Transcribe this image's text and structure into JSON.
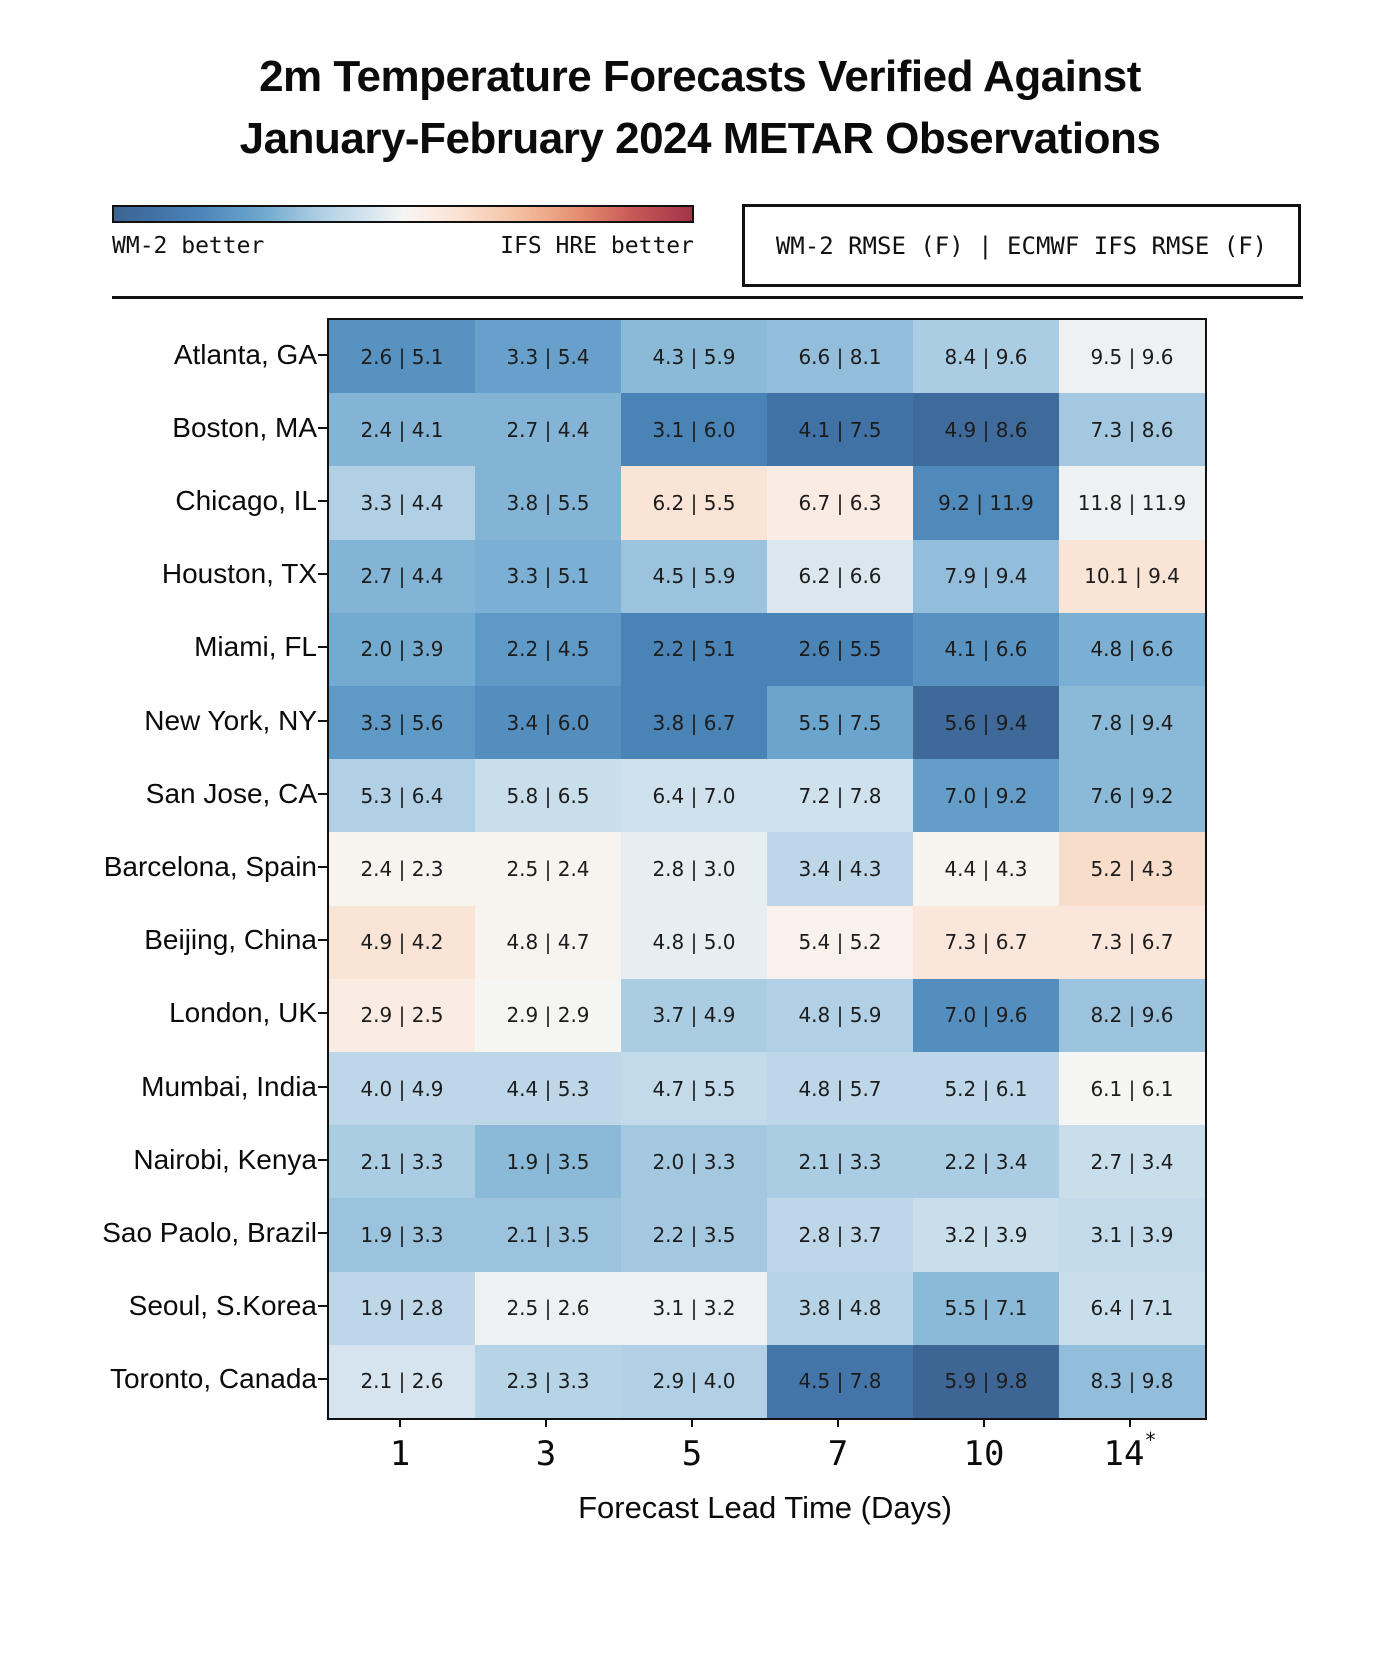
{
  "title": {
    "line1": "2m Temperature Forecasts Verified Against",
    "line2": "January-February 2024 METAR Observations"
  },
  "colorbar": {
    "left_label": "WM-2 better",
    "right_label": "IFS HRE better"
  },
  "legend": {
    "text": "WM-2 RMSE (F) | ECMWF IFS RMSE (F)"
  },
  "chart_data": {
    "type": "heatmap",
    "title": "2m Temperature Forecasts Verified Against January-February 2024 METAR Observations",
    "xlabel": "Forecast Lead Time (Days)",
    "x_categories": [
      "1",
      "3",
      "5",
      "7",
      "10",
      "14"
    ],
    "x_last_tick_marker": "*",
    "cell_value_format": "WM-2 RMSE (F) | ECMWF IFS RMSE (F)",
    "color_scale": {
      "vmin": -4,
      "vmax": 4,
      "blue_end": "#3c6492",
      "white_mid": "#f5f5f3",
      "red_end": "#a23449",
      "meaning_left": "WM-2 better",
      "meaning_right": "IFS HRE better"
    },
    "rows": [
      {
        "city": "Atlanta, GA",
        "wm2": [
          2.6,
          3.3,
          4.3,
          6.6,
          8.4,
          9.5
        ],
        "ifs": [
          5.1,
          5.4,
          5.9,
          8.1,
          9.6,
          9.6
        ]
      },
      {
        "city": "Boston, MA",
        "wm2": [
          2.4,
          2.7,
          3.1,
          4.1,
          4.9,
          7.3
        ],
        "ifs": [
          4.1,
          4.4,
          6.0,
          7.5,
          8.6,
          8.6
        ]
      },
      {
        "city": "Chicago, IL",
        "wm2": [
          3.3,
          3.8,
          6.2,
          6.7,
          9.2,
          11.8
        ],
        "ifs": [
          4.4,
          5.5,
          5.5,
          6.3,
          11.9,
          11.9
        ]
      },
      {
        "city": "Houston, TX",
        "wm2": [
          2.7,
          3.3,
          4.5,
          6.2,
          7.9,
          10.1
        ],
        "ifs": [
          4.4,
          5.1,
          5.9,
          6.6,
          9.4,
          9.4
        ]
      },
      {
        "city": "Miami, FL",
        "wm2": [
          2.0,
          2.2,
          2.2,
          2.6,
          4.1,
          4.8
        ],
        "ifs": [
          3.9,
          4.5,
          5.1,
          5.5,
          6.6,
          6.6
        ]
      },
      {
        "city": "New York, NY",
        "wm2": [
          3.3,
          3.4,
          3.8,
          5.5,
          5.6,
          7.8
        ],
        "ifs": [
          5.6,
          6.0,
          6.7,
          7.5,
          9.4,
          9.4
        ]
      },
      {
        "city": "San Jose, CA",
        "wm2": [
          5.3,
          5.8,
          6.4,
          7.2,
          7.0,
          7.6
        ],
        "ifs": [
          6.4,
          6.5,
          7.0,
          7.8,
          9.2,
          9.2
        ]
      },
      {
        "city": "Barcelona, Spain",
        "wm2": [
          2.4,
          2.5,
          2.8,
          3.4,
          4.4,
          5.2
        ],
        "ifs": [
          2.3,
          2.4,
          3.0,
          4.3,
          4.3,
          4.3
        ]
      },
      {
        "city": "Beijing, China",
        "wm2": [
          4.9,
          4.8,
          4.8,
          5.4,
          7.3,
          7.3
        ],
        "ifs": [
          4.2,
          4.7,
          5.0,
          5.2,
          6.7,
          6.7
        ]
      },
      {
        "city": "London, UK",
        "wm2": [
          2.9,
          2.9,
          3.7,
          4.8,
          7.0,
          8.2
        ],
        "ifs": [
          2.5,
          2.9,
          4.9,
          5.9,
          9.6,
          9.6
        ]
      },
      {
        "city": "Mumbai, India",
        "wm2": [
          4.0,
          4.4,
          4.7,
          4.8,
          5.2,
          6.1
        ],
        "ifs": [
          4.9,
          5.3,
          5.5,
          5.7,
          6.1,
          6.1
        ]
      },
      {
        "city": "Nairobi, Kenya",
        "wm2": [
          2.1,
          1.9,
          2.0,
          2.1,
          2.2,
          2.7
        ],
        "ifs": [
          3.3,
          3.5,
          3.3,
          3.3,
          3.4,
          3.4
        ]
      },
      {
        "city": "Sao Paolo, Brazil",
        "wm2": [
          1.9,
          2.1,
          2.2,
          2.8,
          3.2,
          3.1
        ],
        "ifs": [
          3.3,
          3.5,
          3.5,
          3.7,
          3.9,
          3.9
        ]
      },
      {
        "city": "Seoul, S.Korea",
        "wm2": [
          1.9,
          2.5,
          3.1,
          3.8,
          5.5,
          6.4
        ],
        "ifs": [
          2.8,
          2.6,
          3.2,
          4.8,
          7.1,
          7.1
        ]
      },
      {
        "city": "Toronto, Canada",
        "wm2": [
          2.1,
          2.3,
          2.9,
          4.5,
          5.9,
          8.3
        ],
        "ifs": [
          2.6,
          3.3,
          4.0,
          7.8,
          9.8,
          9.8
        ]
      }
    ]
  }
}
